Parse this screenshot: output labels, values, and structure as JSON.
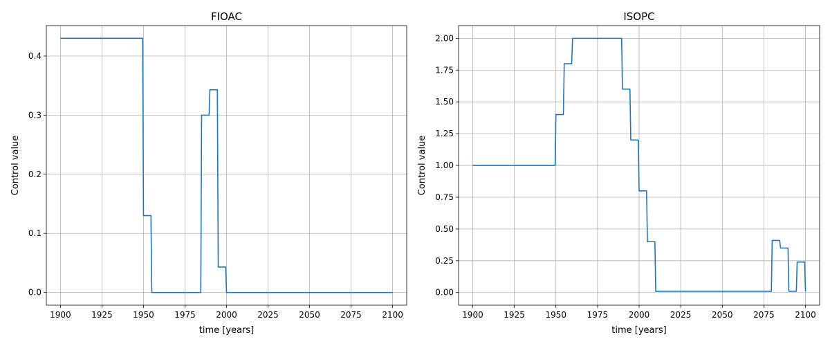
{
  "chart_data": [
    {
      "type": "line",
      "title": "FIOAC",
      "xlabel": "time [years]",
      "ylabel": "Control value",
      "xlim": [
        1891.5,
        2108.5
      ],
      "ylim": [
        -0.0215,
        0.4515
      ],
      "xticks": [
        1900,
        1925,
        1950,
        1975,
        2000,
        2025,
        2050,
        2075,
        2100
      ],
      "yticks": [
        0.0,
        0.1,
        0.2,
        0.3,
        0.4
      ],
      "ytick_labels": [
        "0.0",
        "0.1",
        "0.2",
        "0.3",
        "0.4"
      ],
      "grid": true,
      "color": "#1f77b4",
      "series": [
        {
          "x": [
            1900,
            1949.5,
            1950,
            1954.5,
            1955,
            1984.5,
            1985,
            1989.5,
            1990,
            1994.5,
            1995,
            1999.5,
            2000,
            2100
          ],
          "y": [
            0.43,
            0.43,
            0.13,
            0.13,
            0.0,
            0.0,
            0.3,
            0.3,
            0.343,
            0.343,
            0.043,
            0.043,
            0.0,
            0.0
          ]
        }
      ]
    },
    {
      "type": "line",
      "title": "ISOPC",
      "xlabel": "time [years]",
      "ylabel": "Control value",
      "xlim": [
        1891.5,
        2108.5
      ],
      "ylim": [
        -0.0995,
        2.1
      ],
      "xticks": [
        1900,
        1925,
        1950,
        1975,
        2000,
        2025,
        2050,
        2075,
        2100
      ],
      "yticks": [
        0.0,
        0.25,
        0.5,
        0.75,
        1.0,
        1.25,
        1.5,
        1.75,
        2.0
      ],
      "ytick_labels": [
        "0.00",
        "0.25",
        "0.50",
        "0.75",
        "1.00",
        "1.25",
        "1.50",
        "1.75",
        "2.00"
      ],
      "grid": true,
      "color": "#1f77b4",
      "series": [
        {
          "x": [
            1900,
            1949.5,
            1950,
            1954.5,
            1955,
            1959.5,
            1960,
            1989.5,
            1990,
            1994.5,
            1995,
            1999.5,
            2000,
            2004.5,
            2005,
            2009.5,
            2010,
            2079.5,
            2080,
            2084.5,
            2085,
            2089.5,
            2090,
            2094.5,
            2095,
            2099.5,
            2100
          ],
          "y": [
            1.0,
            1.0,
            1.4,
            1.4,
            1.8,
            1.8,
            2.0,
            2.0,
            1.6,
            1.6,
            1.2,
            1.2,
            0.8,
            0.8,
            0.4,
            0.4,
            0.01,
            0.01,
            0.41,
            0.41,
            0.35,
            0.35,
            0.01,
            0.01,
            0.24,
            0.24,
            0.01
          ]
        }
      ]
    }
  ]
}
